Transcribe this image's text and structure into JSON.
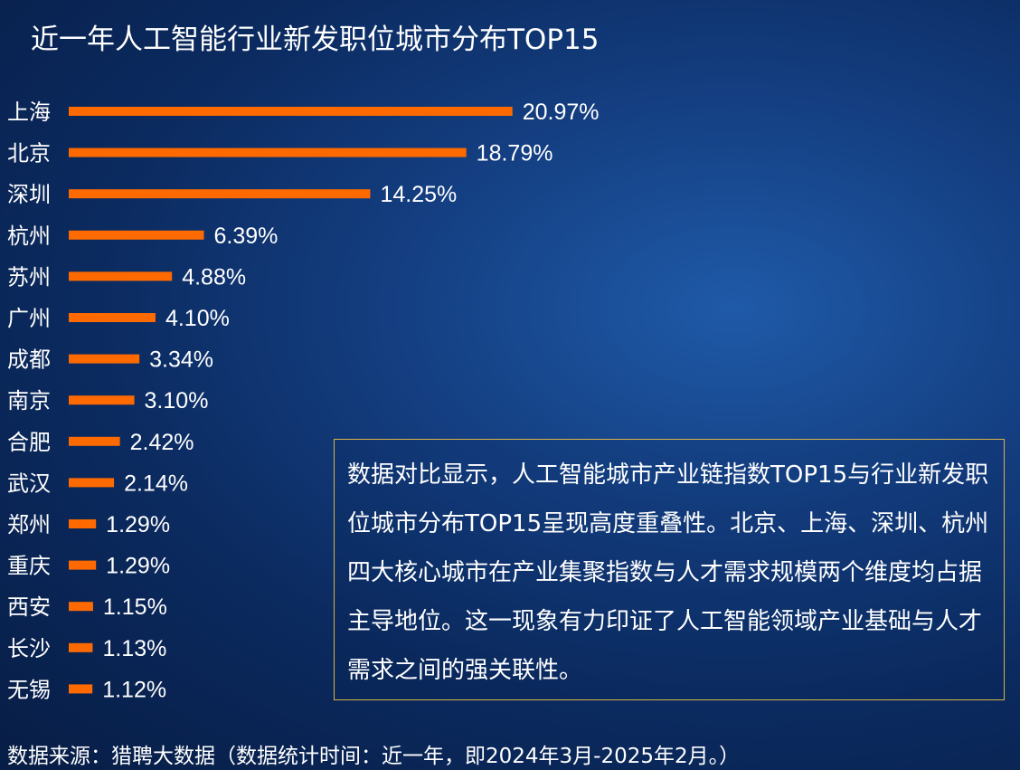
{
  "title": "近一年人工智能行业新发职位城市分布TOP15",
  "callout": {
    "text": "数据对比显示，人工智能城市产业链指数TOP15与行业新发职位城市分布TOP15呈现高度重叠性。北京、上海、深圳、杭州四大核心城市在产业集聚指数与人才需求规模两个维度均占据主导地位。这一现象有力印证了人工智能领域产业基础与人才需求之间的强关联性。"
  },
  "source": "数据来源：猎聘大数据（数据统计时间：近一年，即2024年3月-2025年2月。）",
  "colors": {
    "bar": "#ff6a00",
    "background": "#0b2a5f",
    "callout_border": "#d8b44a"
  },
  "chart_data": {
    "type": "bar",
    "orientation": "horizontal",
    "title": "近一年人工智能行业新发职位城市分布TOP15",
    "categories": [
      "上海",
      "北京",
      "深圳",
      "杭州",
      "苏州",
      "广州",
      "成都",
      "南京",
      "合肥",
      "武汉",
      "郑州",
      "重庆",
      "西安",
      "长沙",
      "无锡"
    ],
    "values": [
      20.97,
      18.79,
      14.25,
      6.39,
      4.88,
      4.1,
      3.34,
      3.1,
      2.42,
      2.14,
      1.29,
      1.29,
      1.15,
      1.13,
      1.12
    ],
    "value_labels": [
      "20.97%",
      "18.79%",
      "14.25%",
      "6.39%",
      "4.88%",
      "4.10%",
      "3.34%",
      "3.10%",
      "2.42%",
      "2.14%",
      "1.29%",
      "1.29%",
      "1.15%",
      "1.13%",
      "1.12%"
    ],
    "unit": "%",
    "xlabel": "",
    "ylabel": "",
    "grid": false,
    "legend": "none"
  }
}
